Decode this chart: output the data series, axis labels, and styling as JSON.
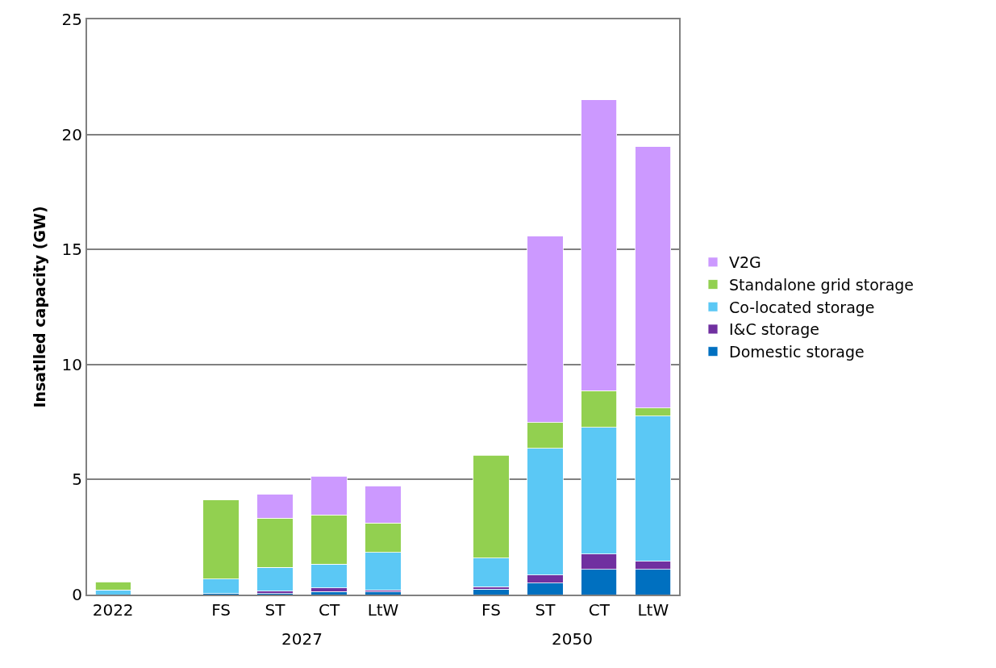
{
  "chart_data": {
    "type": "bar",
    "stacked": true,
    "ylabel": "Insatlled capacity (GW)",
    "categories": [
      "2022",
      null,
      "FS",
      "ST",
      "CT",
      "LtW",
      null,
      "FS",
      "ST",
      "CT",
      "LtW"
    ],
    "series": [
      {
        "name": "Domestic storage",
        "color": "#0070c0",
        "values": [
          null,
          null,
          0.05,
          0.05,
          0.13,
          0.12,
          null,
          0.23,
          0.5,
          1.1,
          1.1
        ]
      },
      {
        "name": "I&C storage",
        "color": "#7030a0",
        "values": [
          null,
          null,
          null,
          0.1,
          0.16,
          0.09,
          null,
          0.12,
          0.35,
          0.66,
          0.34
        ]
      },
      {
        "name": "Co-located storage",
        "color": "#5bc8f5",
        "values": [
          0.2,
          null,
          0.62,
          1.03,
          1.03,
          1.63,
          null,
          1.23,
          5.5,
          5.5,
          6.31
        ]
      },
      {
        "name": "Standalone grid storage",
        "color": "#92d050",
        "values": [
          0.36,
          null,
          3.45,
          2.15,
          2.15,
          1.28,
          null,
          4.47,
          1.12,
          1.61,
          0.35
        ]
      },
      {
        "name": "V2G",
        "color": "#cc99ff",
        "values": [
          null,
          null,
          null,
          1.03,
          1.67,
          1.6,
          null,
          null,
          8.1,
          12.63,
          11.37
        ]
      }
    ],
    "annotations": [
      "2027",
      "2050"
    ],
    "ylim": [
      0,
      25
    ],
    "yticks": [
      0,
      5,
      10,
      15,
      20,
      25
    ],
    "grid": "y",
    "legend": "right"
  }
}
